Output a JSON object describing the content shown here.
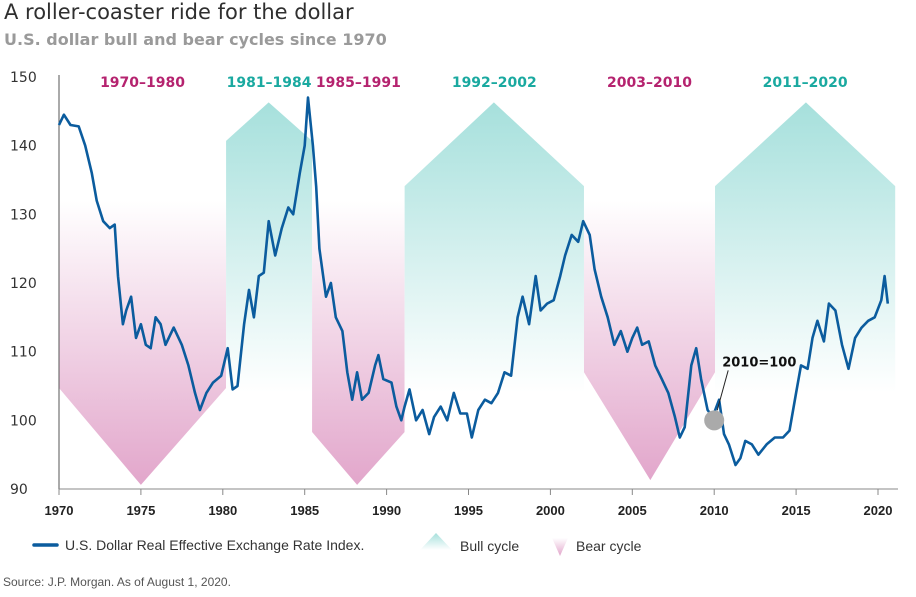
{
  "chart_data": {
    "type": "line",
    "title": "A roller-coaster ride for the dollar",
    "subtitle": "U.S. dollar bull and bear cycles since 1970",
    "xlim": [
      1970,
      2020.6
    ],
    "ylim": [
      90,
      150
    ],
    "yticks": [
      90,
      100,
      110,
      120,
      130,
      140,
      150
    ],
    "xticks": [
      1970,
      1975,
      1980,
      1985,
      1990,
      1995,
      2000,
      2005,
      2010,
      2015,
      2020
    ],
    "grid": false,
    "legend_placement": "bottom-left",
    "colors": {
      "line": "#0b5c9e",
      "bull": "#1aa9a0",
      "bear": "#b5236f",
      "bull_fill": "#a6e0dc",
      "bear_fill": "#e2a6cb"
    },
    "cycles": [
      {
        "label": "1970–1980",
        "kind": "bear",
        "start": 1970,
        "end": 1980.2,
        "top": 132,
        "side": 104.7,
        "tip_x": 1975,
        "tip": 90.6
      },
      {
        "label": "1981–1984",
        "kind": "bull",
        "start": 1980.2,
        "end": 1985.45,
        "bottom": 90,
        "side": 140.7,
        "tip_x": 1982.8,
        "tip": 146.3
      },
      {
        "label": "1985–1991",
        "kind": "bear",
        "start": 1985.45,
        "end": 1991.1,
        "top": 132,
        "side": 98.3,
        "tip_x": 1988.2,
        "tip": 90.6
      },
      {
        "label": "1992–2002",
        "kind": "bull",
        "start": 1991.1,
        "end": 2002.05,
        "bottom": 90,
        "side": 134.1,
        "tip_x": 1996.55,
        "tip": 146.3
      },
      {
        "label": "2003–2010",
        "kind": "bear",
        "start": 2002.05,
        "end": 2010.05,
        "top": 132,
        "side": 107,
        "tip_x": 2006.1,
        "tip": 91.3
      },
      {
        "label": "2011–2020",
        "kind": "bull",
        "start": 2010.05,
        "end": 2021.05,
        "bottom": 90,
        "side": 134.1,
        "tip_x": 2015.6,
        "tip": 146.3
      }
    ],
    "annotation": {
      "label": "2010=100",
      "x": 2010,
      "y": 100
    },
    "series": [
      {
        "name": "U.S. Dollar Real Effective Exchange Rate Index.",
        "points": [
          [
            1970.0,
            143
          ],
          [
            1970.3,
            144.5
          ],
          [
            1970.7,
            143
          ],
          [
            1971.2,
            142.8
          ],
          [
            1971.6,
            140
          ],
          [
            1972.0,
            136
          ],
          [
            1972.3,
            132
          ],
          [
            1972.7,
            129
          ],
          [
            1973.1,
            128
          ],
          [
            1973.4,
            128.5
          ],
          [
            1973.6,
            121
          ],
          [
            1973.9,
            114
          ],
          [
            1974.1,
            116
          ],
          [
            1974.4,
            118
          ],
          [
            1974.7,
            112
          ],
          [
            1975.0,
            114
          ],
          [
            1975.3,
            111
          ],
          [
            1975.6,
            110.5
          ],
          [
            1975.9,
            115
          ],
          [
            1976.2,
            114
          ],
          [
            1976.5,
            111
          ],
          [
            1977.0,
            113.5
          ],
          [
            1977.5,
            111
          ],
          [
            1977.9,
            108
          ],
          [
            1978.3,
            104
          ],
          [
            1978.6,
            101.5
          ],
          [
            1979.0,
            104
          ],
          [
            1979.4,
            105.5
          ],
          [
            1979.9,
            106.5
          ],
          [
            1980.3,
            110.5
          ],
          [
            1980.6,
            104.5
          ],
          [
            1980.9,
            105
          ],
          [
            1981.3,
            114
          ],
          [
            1981.6,
            119
          ],
          [
            1981.9,
            115
          ],
          [
            1982.2,
            121
          ],
          [
            1982.5,
            121.5
          ],
          [
            1982.8,
            129
          ],
          [
            1983.2,
            124
          ],
          [
            1983.6,
            128
          ],
          [
            1984.0,
            131
          ],
          [
            1984.3,
            130
          ],
          [
            1984.7,
            136
          ],
          [
            1985.0,
            140
          ],
          [
            1985.2,
            147
          ],
          [
            1985.5,
            140
          ],
          [
            1985.7,
            134
          ],
          [
            1985.9,
            125
          ],
          [
            1986.3,
            118
          ],
          [
            1986.6,
            120
          ],
          [
            1986.9,
            115
          ],
          [
            1987.3,
            113
          ],
          [
            1987.6,
            107
          ],
          [
            1987.9,
            103
          ],
          [
            1988.2,
            107
          ],
          [
            1988.5,
            103
          ],
          [
            1988.9,
            104
          ],
          [
            1989.3,
            108
          ],
          [
            1989.5,
            109.5
          ],
          [
            1989.8,
            106
          ],
          [
            1990.3,
            105.5
          ],
          [
            1990.6,
            102
          ],
          [
            1990.9,
            100
          ],
          [
            1991.1,
            102
          ],
          [
            1991.4,
            104.5
          ],
          [
            1991.8,
            100
          ],
          [
            1992.2,
            101.5
          ],
          [
            1992.6,
            98
          ],
          [
            1992.9,
            100.5
          ],
          [
            1993.3,
            102
          ],
          [
            1993.7,
            100
          ],
          [
            1994.1,
            104
          ],
          [
            1994.5,
            101
          ],
          [
            1994.9,
            101
          ],
          [
            1995.2,
            97.5
          ],
          [
            1995.6,
            101.5
          ],
          [
            1996.0,
            103
          ],
          [
            1996.4,
            102.5
          ],
          [
            1996.8,
            104
          ],
          [
            1997.2,
            107
          ],
          [
            1997.6,
            106.5
          ],
          [
            1998.0,
            115
          ],
          [
            1998.3,
            118
          ],
          [
            1998.7,
            114
          ],
          [
            1999.1,
            121
          ],
          [
            1999.4,
            116
          ],
          [
            1999.8,
            117
          ],
          [
            2000.2,
            117.5
          ],
          [
            2000.6,
            121
          ],
          [
            2000.9,
            124
          ],
          [
            2001.3,
            127
          ],
          [
            2001.7,
            126
          ],
          [
            2002.0,
            129
          ],
          [
            2002.4,
            127
          ],
          [
            2002.7,
            122
          ],
          [
            2003.1,
            118
          ],
          [
            2003.5,
            115
          ],
          [
            2003.9,
            111
          ],
          [
            2004.3,
            113
          ],
          [
            2004.7,
            110
          ],
          [
            2005.0,
            112
          ],
          [
            2005.3,
            113.5
          ],
          [
            2005.6,
            111
          ],
          [
            2006.0,
            111.5
          ],
          [
            2006.4,
            108
          ],
          [
            2006.8,
            106
          ],
          [
            2007.2,
            104
          ],
          [
            2007.6,
            100.5
          ],
          [
            2007.9,
            97.5
          ],
          [
            2008.2,
            99
          ],
          [
            2008.6,
            108
          ],
          [
            2008.9,
            110.5
          ],
          [
            2009.2,
            106
          ],
          [
            2009.6,
            101.5
          ],
          [
            2009.9,
            100.5
          ],
          [
            2010.3,
            103
          ],
          [
            2010.6,
            98
          ],
          [
            2010.9,
            96.5
          ],
          [
            2011.3,
            93.5
          ],
          [
            2011.6,
            94.5
          ],
          [
            2011.9,
            97
          ],
          [
            2012.3,
            96.5
          ],
          [
            2012.7,
            95
          ],
          [
            2013.2,
            96.5
          ],
          [
            2013.7,
            97.5
          ],
          [
            2014.2,
            97.5
          ],
          [
            2014.6,
            98.5
          ],
          [
            2015.0,
            104
          ],
          [
            2015.3,
            108
          ],
          [
            2015.7,
            107.5
          ],
          [
            2016.0,
            112
          ],
          [
            2016.3,
            114.5
          ],
          [
            2016.7,
            111.5
          ],
          [
            2017.0,
            117
          ],
          [
            2017.4,
            116
          ],
          [
            2017.8,
            111
          ],
          [
            2018.2,
            107.5
          ],
          [
            2018.6,
            112
          ],
          [
            2019.0,
            113.5
          ],
          [
            2019.4,
            114.5
          ],
          [
            2019.8,
            115
          ],
          [
            2020.2,
            117.5
          ],
          [
            2020.4,
            121
          ],
          [
            2020.6,
            117
          ]
        ]
      }
    ],
    "legend": [
      "U.S. Dollar Real Effective Exchange Rate Index.",
      "Bull cycle",
      "Bear cycle"
    ]
  },
  "source": "Source: J.P. Morgan. As of August 1, 2020."
}
